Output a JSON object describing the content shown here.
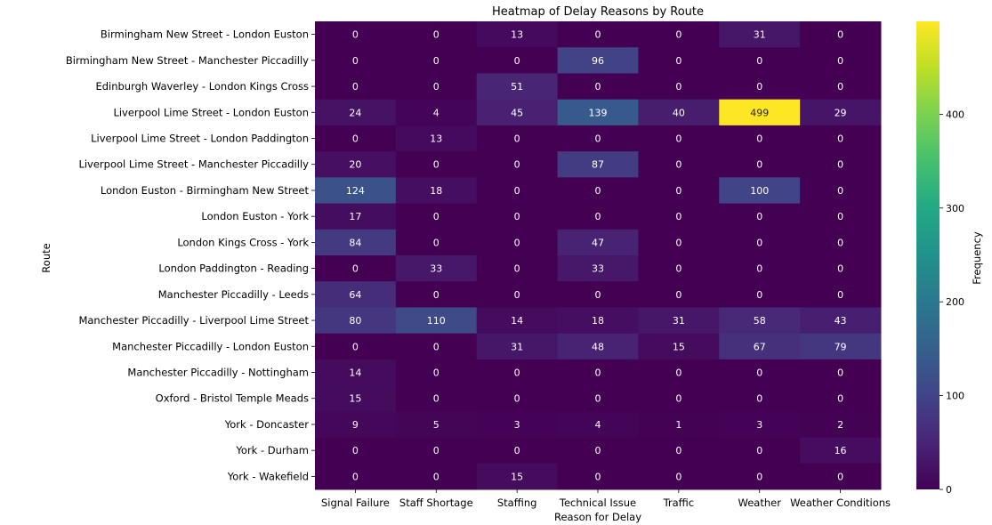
{
  "chart_data": {
    "type": "heatmap",
    "title": "Heatmap of Delay Reasons by Route",
    "xlabel": "Reason for Delay",
    "ylabel": "Route",
    "colorbar_label": "Frequency",
    "colormap": "viridis",
    "vmin": 0,
    "vmax": 499,
    "colorbar_ticks": [
      0,
      100,
      200,
      300,
      400
    ],
    "columns": [
      "Signal Failure",
      "Staff Shortage",
      "Staffing",
      "Technical Issue",
      "Traffic",
      "Weather",
      "Weather Conditions"
    ],
    "rows": [
      "Birmingham New Street - London Euston",
      "Birmingham New Street - Manchester Piccadilly",
      "Edinburgh Waverley - London Kings Cross",
      "Liverpool Lime Street - London Euston",
      "Liverpool Lime Street - London Paddington",
      "Liverpool Lime Street - Manchester Piccadilly",
      "London Euston - Birmingham New Street",
      "London Euston - York",
      "London Kings Cross - York",
      "London Paddington - Reading",
      "Manchester Piccadilly - Leeds",
      "Manchester Piccadilly - Liverpool Lime Street",
      "Manchester Piccadilly - London Euston",
      "Manchester Piccadilly - Nottingham",
      "Oxford - Bristol Temple Meads",
      "York - Doncaster",
      "York - Durham",
      "York - Wakefield"
    ],
    "values": [
      [
        0,
        0,
        13,
        0,
        0,
        31,
        0
      ],
      [
        0,
        0,
        0,
        96,
        0,
        0,
        0
      ],
      [
        0,
        0,
        51,
        0,
        0,
        0,
        0
      ],
      [
        24,
        4,
        45,
        139,
        40,
        499,
        29
      ],
      [
        0,
        13,
        0,
        0,
        0,
        0,
        0
      ],
      [
        20,
        0,
        0,
        87,
        0,
        0,
        0
      ],
      [
        124,
        18,
        0,
        0,
        0,
        100,
        0
      ],
      [
        17,
        0,
        0,
        0,
        0,
        0,
        0
      ],
      [
        84,
        0,
        0,
        47,
        0,
        0,
        0
      ],
      [
        0,
        33,
        0,
        33,
        0,
        0,
        0
      ],
      [
        64,
        0,
        0,
        0,
        0,
        0,
        0
      ],
      [
        80,
        110,
        14,
        18,
        31,
        58,
        43
      ],
      [
        0,
        0,
        31,
        48,
        15,
        67,
        79
      ],
      [
        14,
        0,
        0,
        0,
        0,
        0,
        0
      ],
      [
        15,
        0,
        0,
        0,
        0,
        0,
        0
      ],
      [
        9,
        5,
        3,
        4,
        1,
        3,
        2
      ],
      [
        0,
        0,
        0,
        0,
        0,
        0,
        16
      ],
      [
        0,
        0,
        15,
        0,
        0,
        0,
        0
      ]
    ]
  }
}
